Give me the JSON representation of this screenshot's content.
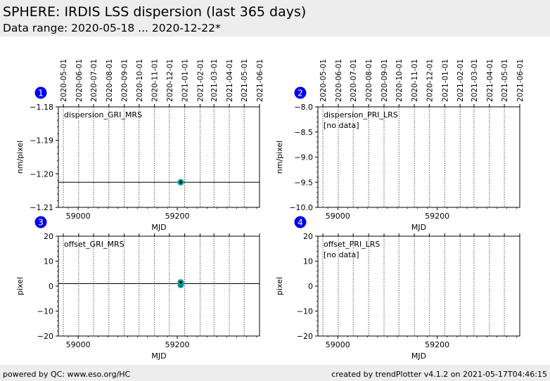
{
  "page": {
    "title": "SPHERE: IRDIS LSS dispersion (last 365 days)",
    "subtitle": "Data range: 2020-05-18 ... 2020-12-22*"
  },
  "footer": {
    "left": "powered by QC: www.eso.org/HC",
    "right": "created by trendPlotter v4.1.2 on 2021-05-17T04:46:15"
  },
  "colors": {
    "marker_fill": "#00a0a0",
    "marker_center": "#000000",
    "badge": "#0000ee"
  },
  "chart_data": [
    {
      "type": "scatter",
      "panel": "1",
      "title": "dispersion_GRI_MRS",
      "note": "",
      "xlabel": "MJD",
      "ylabel": "nm/pixel",
      "xlim": [
        58960,
        59366
      ],
      "ylim": [
        -1.21,
        -1.18
      ],
      "x_ticks": [
        59000,
        59200
      ],
      "x_tick_labels": [
        "59000",
        "59200"
      ],
      "y_ticks": [
        -1.21,
        -1.2,
        -1.19,
        -1.18
      ],
      "y_tick_labels": [
        "−1.21",
        "−1.20",
        "−1.19",
        "−1.18"
      ],
      "date_ticks": [
        "2020-05-01",
        "2020-06-01",
        "2020-07-01",
        "2020-08-01",
        "2020-09-01",
        "2020-10-01",
        "2020-11-01",
        "2020-12-01",
        "2021-01-01",
        "2021-02-01",
        "2021-03-01",
        "2021-04-01",
        "2021-05-01",
        "2021-06-01"
      ],
      "date_ticks_mjd": [
        58970,
        59001,
        59031,
        59062,
        59093,
        59123,
        59154,
        59184,
        59215,
        59246,
        59274,
        59305,
        59335,
        59366
      ],
      "reference_line": -1.2025,
      "points": [
        {
          "x": 59207,
          "y": -1.2025
        }
      ]
    },
    {
      "type": "scatter",
      "panel": "2",
      "title": "dispersion_PRI_LRS",
      "note": "[no data]",
      "xlabel": "MJD",
      "ylabel": "nm/pixel",
      "xlim": [
        58960,
        59366
      ],
      "ylim": [
        -10.0,
        -8.0
      ],
      "x_ticks": [
        59000,
        59200
      ],
      "x_tick_labels": [
        "59000",
        "59200"
      ],
      "y_ticks": [
        -10.0,
        -9.5,
        -9.0,
        -8.5,
        -8.0
      ],
      "y_tick_labels": [
        "−10.0",
        "−9.5",
        "−9.0",
        "−8.5",
        "−8.0"
      ],
      "date_ticks": [
        "2020-05-01",
        "2020-06-01",
        "2020-07-01",
        "2020-08-01",
        "2020-09-01",
        "2020-10-01",
        "2020-11-01",
        "2020-12-01",
        "2021-01-01",
        "2021-02-01",
        "2021-03-01",
        "2021-04-01",
        "2021-05-01",
        "2021-06-01"
      ],
      "date_ticks_mjd": [
        58970,
        59001,
        59031,
        59062,
        59093,
        59123,
        59154,
        59184,
        59215,
        59246,
        59274,
        59305,
        59335,
        59366
      ],
      "reference_line": null,
      "points": []
    },
    {
      "type": "scatter",
      "panel": "3",
      "title": "offset_GRI_MRS",
      "note": "",
      "xlabel": "MJD",
      "ylabel": "pixel",
      "xlim": [
        58960,
        59366
      ],
      "ylim": [
        -20,
        20
      ],
      "x_ticks": [
        59000,
        59200
      ],
      "x_tick_labels": [
        "59000",
        "59200"
      ],
      "y_ticks": [
        -20,
        -10,
        0,
        10,
        20
      ],
      "y_tick_labels": [
        "−20",
        "−10",
        "0",
        "10",
        "20"
      ],
      "date_ticks": [],
      "date_ticks_mjd": [
        58970,
        59001,
        59031,
        59062,
        59093,
        59123,
        59154,
        59184,
        59215,
        59246,
        59274,
        59305,
        59335,
        59366
      ],
      "reference_line": 1.0,
      "points": [
        {
          "x": 59207,
          "y": 0.5
        },
        {
          "x": 59207,
          "y": 1.5
        }
      ]
    },
    {
      "type": "scatter",
      "panel": "4",
      "title": "offset_PRI_LRS",
      "note": "[no data]",
      "xlabel": "MJD",
      "ylabel": "pixel",
      "xlim": [
        58960,
        59366
      ],
      "ylim": [
        -20,
        20
      ],
      "x_ticks": [
        59000,
        59200
      ],
      "x_tick_labels": [
        "59000",
        "59200"
      ],
      "y_ticks": [
        -20,
        -10,
        0,
        10,
        20
      ],
      "y_tick_labels": [
        "−20",
        "−10",
        "0",
        "10",
        "20"
      ],
      "date_ticks": [],
      "date_ticks_mjd": [
        58970,
        59001,
        59031,
        59062,
        59093,
        59123,
        59154,
        59184,
        59215,
        59246,
        59274,
        59305,
        59335,
        59366
      ],
      "reference_line": null,
      "points": []
    }
  ]
}
